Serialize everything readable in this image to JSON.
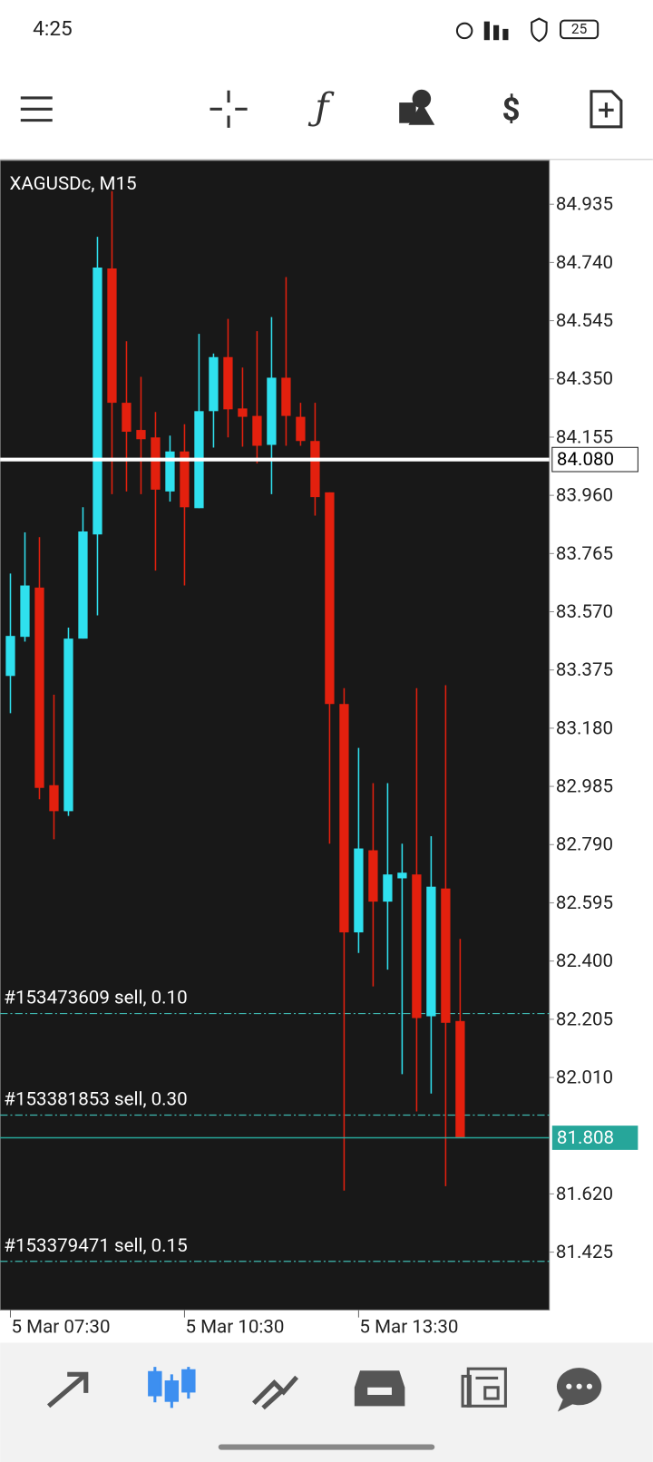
{
  "status_bar": {
    "time": "4:25",
    "battery": "25"
  },
  "chart_data": {
    "type": "candlestick",
    "title": "XAGUSDc, M15",
    "categories": [
      "5 Mar 07:30",
      null,
      null,
      null,
      null,
      null,
      null,
      null,
      null,
      null,
      null,
      null,
      "5 Mar 10:30",
      null,
      null,
      null,
      null,
      null,
      null,
      null,
      null,
      null,
      null,
      null,
      "5 Mar 13:30",
      null,
      null,
      null,
      null,
      null,
      null,
      null
    ],
    "open": [
      83.355,
      83.486,
      83.651,
      82.989,
      82.902,
      83.48,
      83.829,
      84.72,
      84.27,
      84.179,
      84.154,
      83.973,
      84.107,
      83.917,
      84.242,
      84.423,
      84.251,
      84.226,
      84.129,
      84.354,
      84.223,
      84.142,
      83.97,
      83.261,
      82.496,
      82.771,
      82.599,
      82.677,
      82.69,
      82.215,
      82.643,
      82.199
    ],
    "high": [
      83.698,
      83.836,
      83.82,
      83.292,
      83.517,
      83.92,
      84.826,
      84.979,
      84.476,
      84.357,
      84.239,
      84.16,
      84.198,
      84.501,
      84.435,
      84.551,
      84.388,
      84.51,
      84.557,
      84.691,
      84.27,
      84.27,
      83.97,
      83.314,
      83.114,
      82.996,
      82.996,
      82.793,
      83.314,
      82.818,
      83.324,
      82.474
    ],
    "low": [
      83.23,
      83.47,
      82.942,
      82.808,
      82.886,
      83.48,
      83.558,
      83.964,
      83.973,
      83.964,
      83.708,
      83.939,
      83.658,
      83.917,
      84.12,
      84.154,
      84.123,
      84.067,
      83.964,
      84.126,
      84.126,
      83.892,
      82.793,
      81.631,
      82.427,
      82.315,
      82.371,
      82.021,
      81.896,
      81.956,
      81.646,
      81.808
    ],
    "close": [
      83.489,
      83.658,
      82.98,
      82.902,
      83.48,
      83.839,
      84.723,
      84.27,
      84.173,
      84.148,
      83.979,
      84.107,
      83.92,
      84.242,
      84.423,
      84.248,
      84.223,
      84.126,
      84.354,
      84.226,
      84.142,
      83.954,
      83.261,
      82.496,
      82.777,
      82.599,
      82.69,
      82.696,
      82.209,
      82.649,
      82.193,
      81.808
    ],
    "up_color": "#2fe0ee",
    "down_color": "#e3200e",
    "ylim": [
      81.231,
      85.082
    ],
    "yticks": [
      84.935,
      {
        "value": 84.74,
        "label": "84.740"
      },
      84.545,
      {
        "value": 84.35,
        "label": "84.350"
      },
      84.155,
      {
        "value": 83.96,
        "label": "83.960"
      },
      83.765,
      {
        "value": 83.57,
        "label": "83.570"
      },
      83.375,
      {
        "value": 83.18,
        "label": "83.180"
      },
      82.985,
      {
        "value": 82.79,
        "label": "82.790"
      },
      82.595,
      {
        "value": 82.4,
        "label": "82.400"
      },
      82.205,
      {
        "value": 82.01,
        "label": "82.010"
      },
      {
        "value": 81.62,
        "label": "81.620"
      },
      81.425
    ],
    "price_lines": [
      {
        "value": 84.08,
        "label": "84.080",
        "color": "#ffffff"
      },
      {
        "value": 81.808,
        "label": "81.808",
        "color": "#26a69a"
      }
    ],
    "order_lines": [
      {
        "label": "#153473609 sell, 0.10",
        "value": 82.224
      },
      {
        "label": "#153381853 sell, 0.30",
        "value": 81.884
      },
      {
        "label": "#153379471 sell, 0.15",
        "value": 81.394
      }
    ]
  }
}
